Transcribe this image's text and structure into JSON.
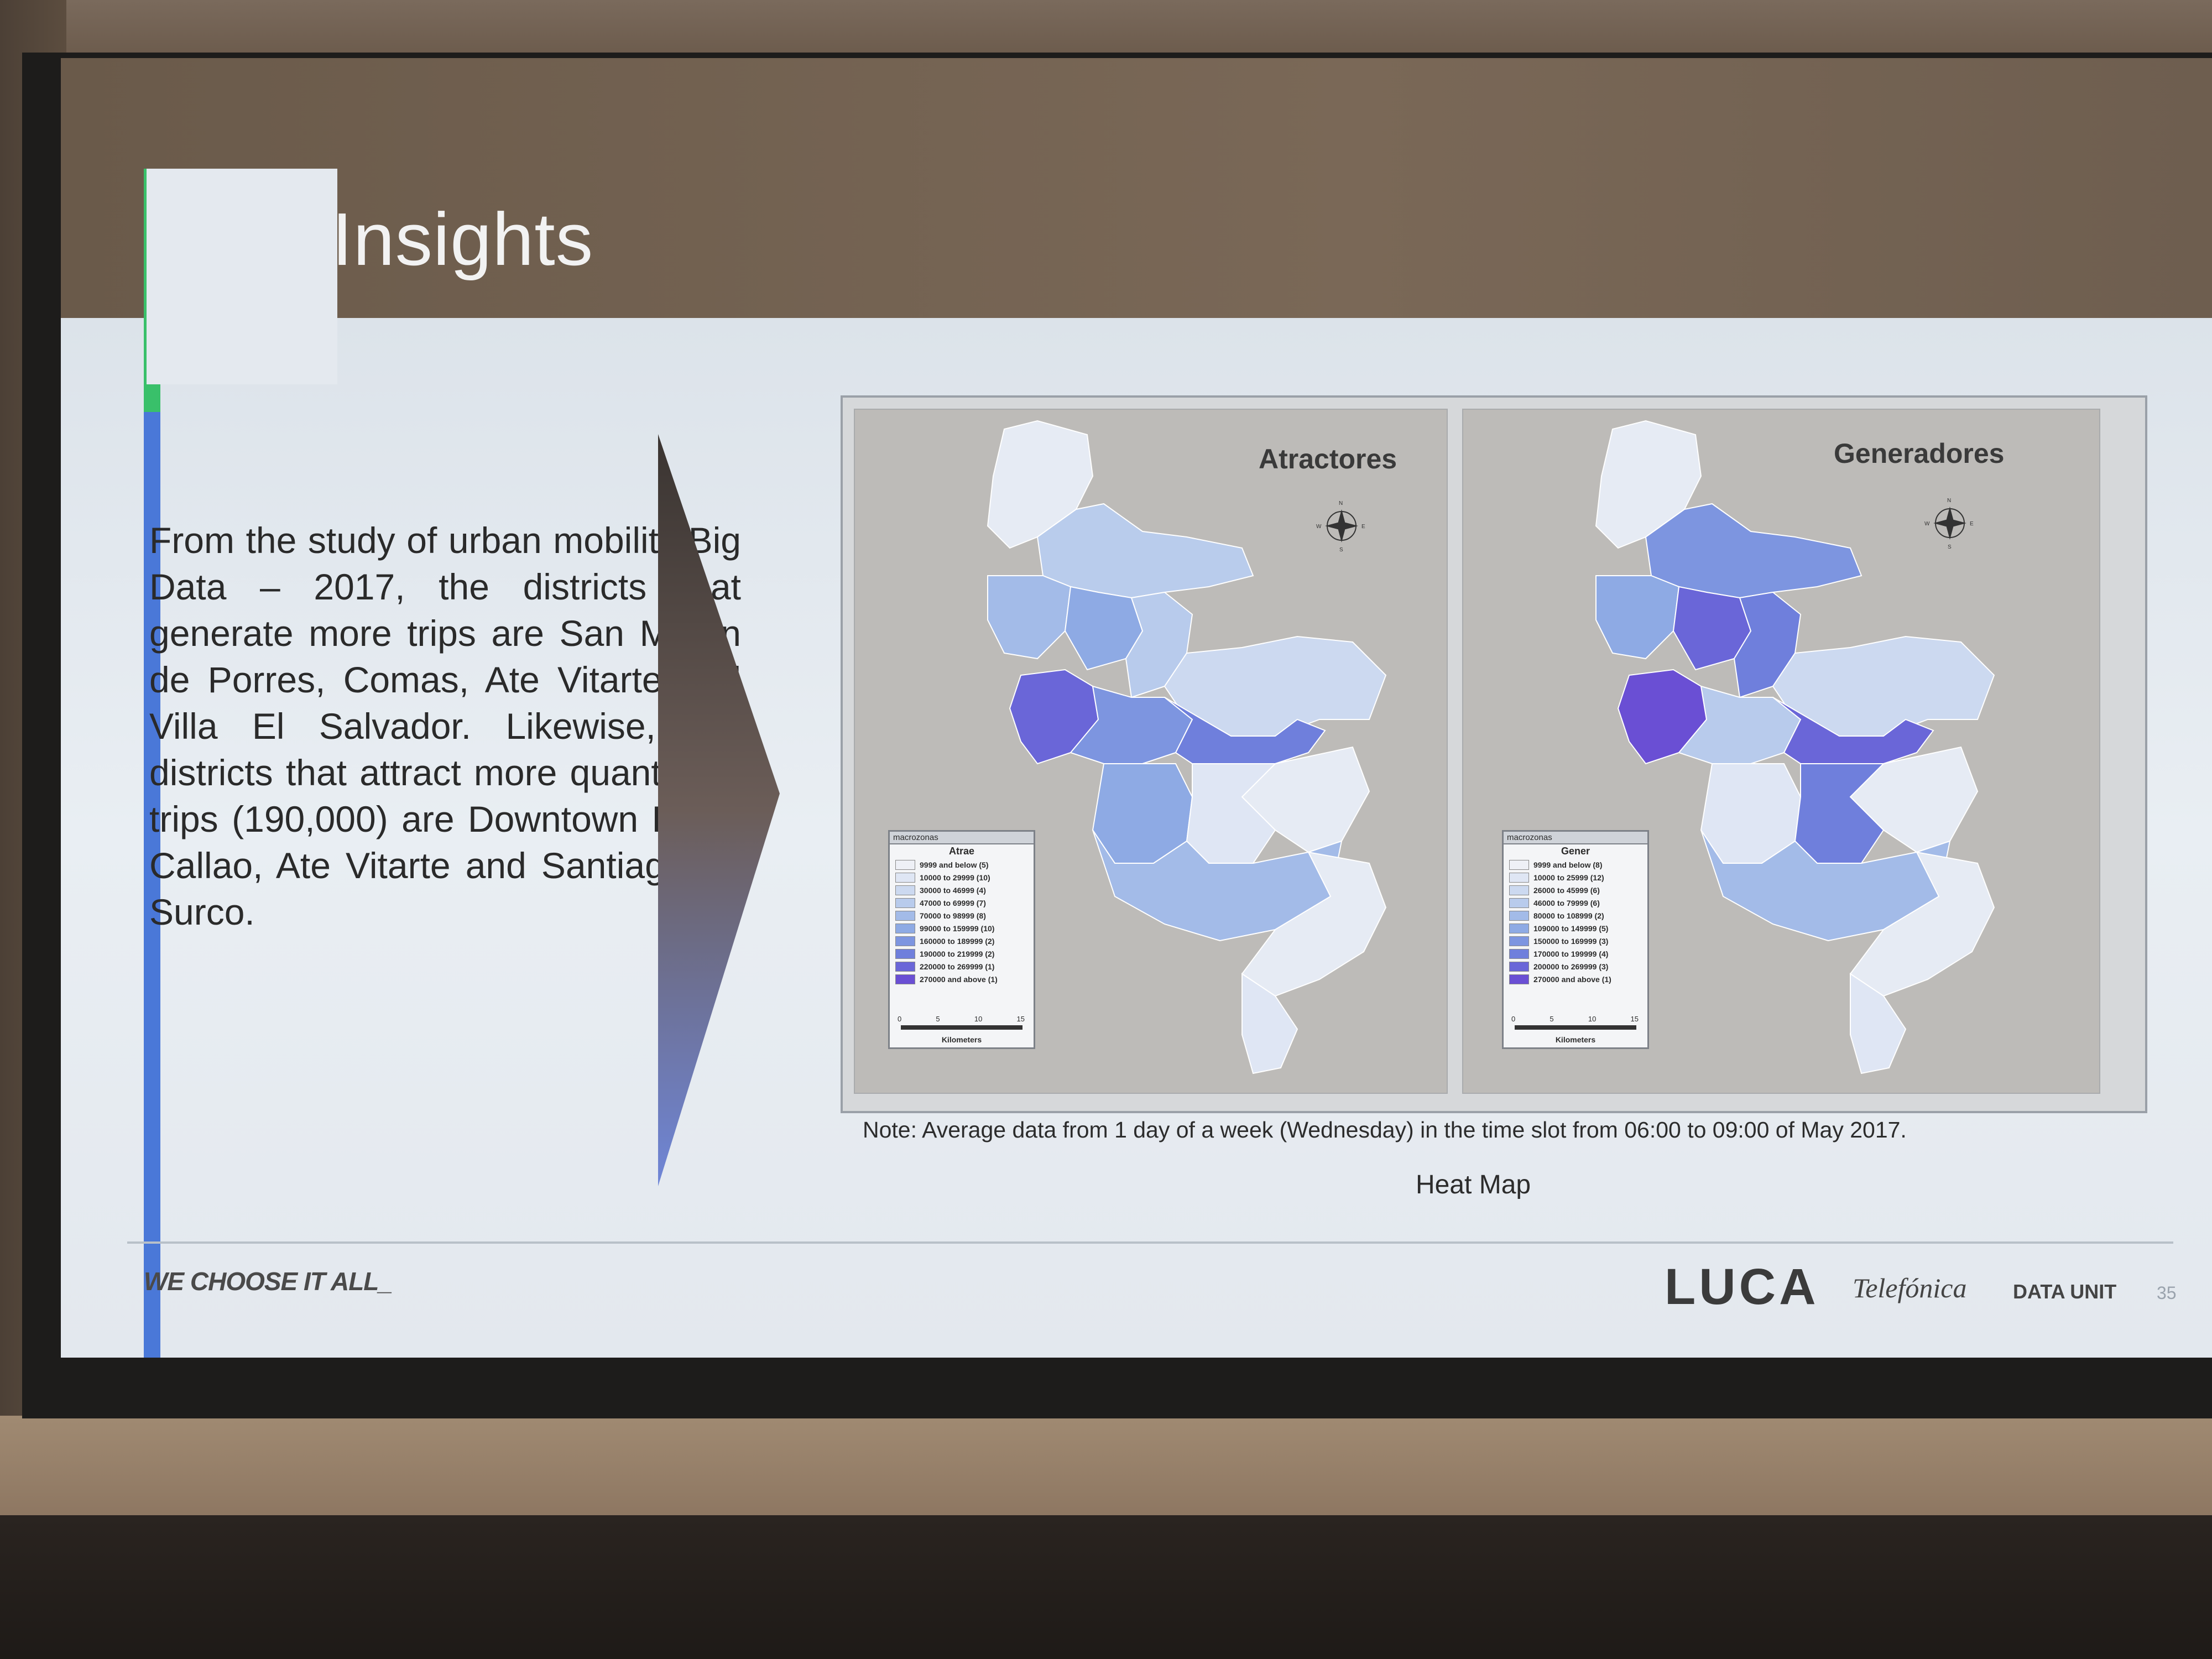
{
  "slide": {
    "title": "Insights",
    "body": "From the study of urban mobility Big Data – 2017, the districts that generate more trips are San Martin de Porres, Comas, Ate Vitarte and Villa El Salvador. Likewise, the districts that attract more quantity of trips (190,000) are Downtown Lima, Callao, Ate Vitarte and Santiago de Surco.",
    "note": "Note: Average data from 1 day of a week (Wednesday) in the time slot from 06:00 to 09:00 of May 2017.",
    "caption": "Heat Map",
    "tagline": "WE CHOOSE IT ALL_",
    "brand_luca": "LUCA",
    "brand_telefonica": "Telefónica",
    "brand_dataunit": "DATA UNIT",
    "page_number": "35"
  },
  "maps": {
    "left": {
      "title": "Atractores",
      "legend_header": "macrozonas",
      "legend_sub": "Atrae",
      "legend_rows": [
        {
          "label": "9999 and below (5)",
          "color": "#eef0f6"
        },
        {
          "label": "10000 to 29999 (10)",
          "color": "#dfe6f4"
        },
        {
          "label": "30000 to 46999 (4)",
          "color": "#ccd9f0"
        },
        {
          "label": "47000 to 69999 (7)",
          "color": "#b8cbec"
        },
        {
          "label": "70000 to 98999 (8)",
          "color": "#a3bbe8"
        },
        {
          "label": "99000 to 159999 (10)",
          "color": "#8eaae4"
        },
        {
          "label": "160000 to 189999 (2)",
          "color": "#7d95e0"
        },
        {
          "label": "190000 to 219999 (2)",
          "color": "#6f7fdc"
        },
        {
          "label": "220000 to 269999 (1)",
          "color": "#6a66d8"
        },
        {
          "label": "270000 and above (1)",
          "color": "#6a4fd4"
        }
      ],
      "scale_ticks": [
        "0",
        "5",
        "10",
        "15"
      ],
      "scale_label": "Kilometers",
      "compass": [
        "N",
        "W",
        "E",
        "S"
      ]
    },
    "right": {
      "title": "Generadores",
      "legend_header": "macrozonas",
      "legend_sub": "Gener",
      "legend_rows": [
        {
          "label": "9999 and below (8)",
          "color": "#eef0f6"
        },
        {
          "label": "10000 to 25999 (12)",
          "color": "#dfe6f4"
        },
        {
          "label": "26000 to 45999 (6)",
          "color": "#ccd9f0"
        },
        {
          "label": "46000 to 79999 (6)",
          "color": "#b8cbec"
        },
        {
          "label": "80000 to 108999 (2)",
          "color": "#a3bbe8"
        },
        {
          "label": "109000 to 149999 (5)",
          "color": "#8eaae4"
        },
        {
          "label": "150000 to 169999 (3)",
          "color": "#7d95e0"
        },
        {
          "label": "170000 to 199999 (4)",
          "color": "#6f7fdc"
        },
        {
          "label": "200000 to 269999 (3)",
          "color": "#6a66d8"
        },
        {
          "label": "270000 and above (1)",
          "color": "#6a4fd4"
        }
      ],
      "scale_ticks": [
        "0",
        "5",
        "10",
        "15"
      ],
      "scale_label": "Kilometers",
      "compass": [
        "N",
        "W",
        "E",
        "S"
      ]
    }
  }
}
